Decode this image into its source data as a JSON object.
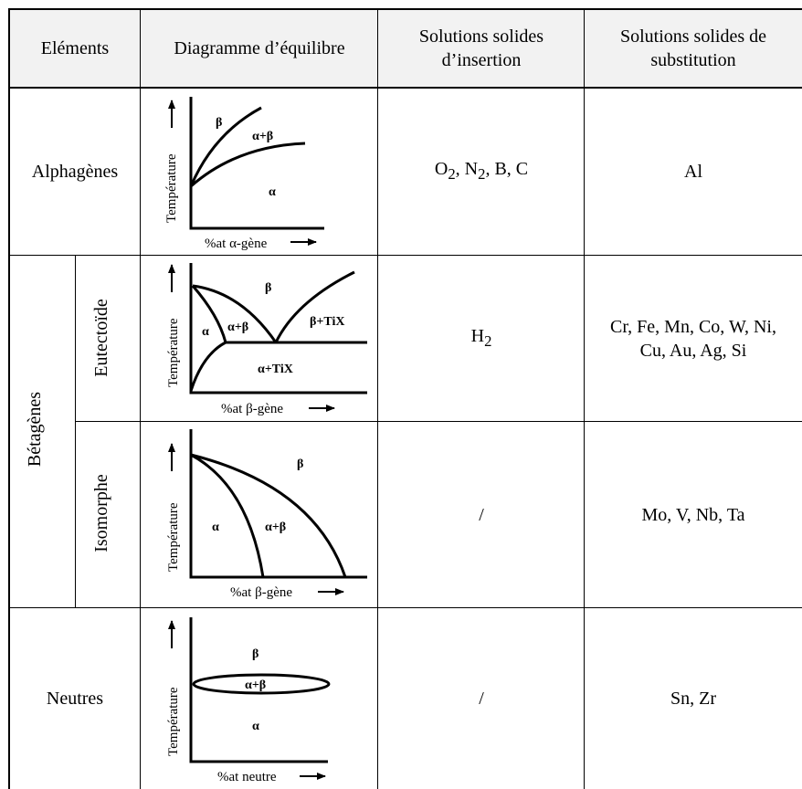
{
  "headers": {
    "elements": "Eléments",
    "diagram": "Diagramme d’équilibre",
    "insertion_line1": "Solutions solides",
    "insertion_line2": "d’insertion",
    "substitution_line1": "Solutions solides de",
    "substitution_line2": "substitution"
  },
  "rows": {
    "alphagenes": {
      "label": "Alphagènes",
      "insertion_parts": [
        "O",
        "2",
        ", N",
        "2",
        ", B, C"
      ],
      "substitution": "Al",
      "diagram": {
        "ylabel": "Température",
        "xlabel": "%at α-gène",
        "phases": [
          "β",
          "α+β",
          "α"
        ]
      }
    },
    "betagenes": {
      "label": "Bétagènes",
      "eutectoide": {
        "label": "Eutectoïde",
        "insertion_main": "H",
        "insertion_sub": "2",
        "substitution_line1": "Cr, Fe, Mn, Co, W, Ni,",
        "substitution_line2": "Cu, Au, Ag, Si",
        "diagram": {
          "ylabel": "Température",
          "xlabel": "%at β-gène",
          "phases": [
            "β",
            "α",
            "α+β",
            "β+TiX",
            "α+TiX"
          ]
        }
      },
      "isomorphe": {
        "label": "Isomorphe",
        "insertion": "/",
        "substitution": "Mo, V, Nb, Ta",
        "diagram": {
          "ylabel": "Température",
          "xlabel": "%at β-gène",
          "phases": [
            "β",
            "α",
            "α+β"
          ]
        }
      }
    },
    "neutres": {
      "label": "Neutres",
      "insertion": "/",
      "substitution": "Sn, Zr",
      "diagram": {
        "ylabel": "Température",
        "xlabel": "%at neutre",
        "phases": [
          "β",
          "α+β",
          "α"
        ]
      }
    }
  }
}
